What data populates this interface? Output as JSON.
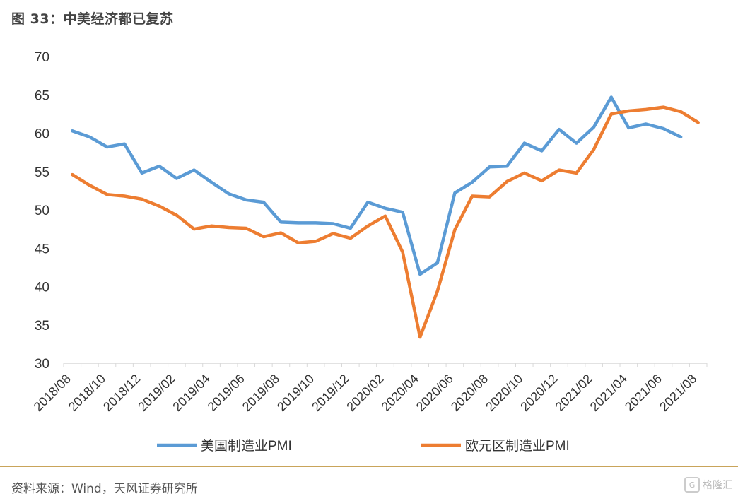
{
  "header": {
    "title": "图 33：中美经济都已复苏"
  },
  "footer": {
    "source": "资料来源：Wind，天风证券研究所",
    "watermark": "格隆汇"
  },
  "chart_data": {
    "type": "line",
    "title": "",
    "xlabel": "",
    "ylabel": "",
    "ylim": [
      30,
      70
    ],
    "yticks": [
      30,
      35,
      40,
      45,
      50,
      55,
      60,
      65,
      70
    ],
    "grid": false,
    "legend_position": "bottom",
    "x": [
      "2018/08",
      "2018/09",
      "2018/10",
      "2018/11",
      "2018/12",
      "2019/01",
      "2019/02",
      "2019/03",
      "2019/04",
      "2019/05",
      "2019/06",
      "2019/07",
      "2019/08",
      "2019/09",
      "2019/10",
      "2019/11",
      "2019/12",
      "2020/01",
      "2020/02",
      "2020/03",
      "2020/04",
      "2020/05",
      "2020/06",
      "2020/07",
      "2020/08",
      "2020/09",
      "2020/10",
      "2020/11",
      "2020/12",
      "2021/01",
      "2021/02",
      "2021/03",
      "2021/04",
      "2021/05",
      "2021/06",
      "2021/07",
      "2021/08"
    ],
    "xtick_labels": [
      "2018/08",
      "2018/10",
      "2018/12",
      "2019/02",
      "2019/04",
      "2019/06",
      "2019/08",
      "2019/10",
      "2019/12",
      "2020/02",
      "2020/04",
      "2020/06",
      "2020/08",
      "2020/10",
      "2020/12",
      "2021/02",
      "2021/04",
      "2021/06",
      "2021/08"
    ],
    "series": [
      {
        "name": "美国制造业PMI",
        "color": "#5b9bd5",
        "values": [
          60.3,
          59.5,
          58.2,
          58.6,
          54.8,
          55.7,
          54.1,
          55.2,
          53.6,
          52.1,
          51.3,
          51.0,
          48.4,
          48.3,
          48.3,
          48.2,
          47.6,
          51.0,
          50.2,
          49.7,
          41.6,
          43.1,
          52.2,
          53.6,
          55.6,
          55.7,
          58.7,
          57.7,
          60.5,
          58.7,
          60.8,
          64.7,
          60.7,
          61.2,
          60.6,
          59.5,
          null
        ]
      },
      {
        "name": "欧元区制造业PMI",
        "color": "#ed7d31",
        "values": [
          54.6,
          53.2,
          52.0,
          51.8,
          51.4,
          50.5,
          49.3,
          47.5,
          47.9,
          47.7,
          47.6,
          46.5,
          47.0,
          45.7,
          45.9,
          46.9,
          46.3,
          47.9,
          49.2,
          44.5,
          33.4,
          39.4,
          47.4,
          51.8,
          51.7,
          53.7,
          54.8,
          53.8,
          55.2,
          54.8,
          57.9,
          62.5,
          62.9,
          63.1,
          63.4,
          62.8,
          61.4
        ]
      }
    ]
  }
}
